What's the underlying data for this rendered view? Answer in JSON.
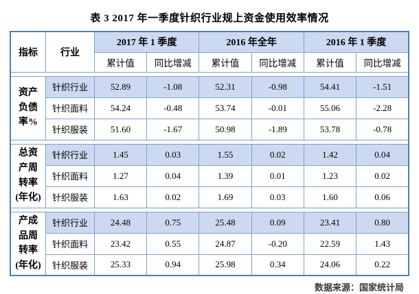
{
  "title": "表 3 2017 年一季度针织行业规上资金使用效率情况",
  "colors": {
    "header_bg": "#ccd9f0",
    "highlight_row_bg": "#ccd9f0",
    "inner_border": "#7aa1d2",
    "outer_border": "#4a7ebb"
  },
  "table": {
    "corner_headers": {
      "indicator": "指标",
      "industry": "行业"
    },
    "period_groups": [
      {
        "label": "2017 年 1 季度"
      },
      {
        "label": "2016 年全年"
      },
      {
        "label": "2016 年 1 季度"
      }
    ],
    "sub_headers": [
      "累计值",
      "同比增减"
    ],
    "groups": [
      {
        "indicator": "资产\n负债\n率%",
        "rows": [
          {
            "industry": "针织行业",
            "highlight": true,
            "values": [
              "52.89",
              "-1.08",
              "52.31",
              "-0.98",
              "54.41",
              "-1.51"
            ]
          },
          {
            "industry": "针织面料",
            "highlight": false,
            "values": [
              "54.24",
              "-0.48",
              "53.74",
              "-0.01",
              "55.06",
              "-2.28"
            ]
          },
          {
            "industry": "针织服装",
            "highlight": false,
            "values": [
              "51.60",
              "-1.67",
              "50.98",
              "-1.89",
              "53.78",
              "-0.78"
            ]
          }
        ]
      },
      {
        "indicator": "总资\n产周\n转率\n(年化)",
        "rows": [
          {
            "industry": "针织行业",
            "highlight": true,
            "values": [
              "1.45",
              "0.03",
              "1.55",
              "0.02",
              "1.42",
              "0.04"
            ]
          },
          {
            "industry": "针织面料",
            "highlight": false,
            "values": [
              "1.27",
              "0.04",
              "1.39",
              "0.01",
              "1.23",
              "0.02"
            ]
          },
          {
            "industry": "针织服装",
            "highlight": false,
            "values": [
              "1.63",
              "0.02",
              "1.69",
              "0.03",
              "1.60",
              "0.06"
            ]
          }
        ]
      },
      {
        "indicator": "产成\n品周\n转率\n(年化)",
        "rows": [
          {
            "industry": "针织行业",
            "highlight": true,
            "values": [
              "24.48",
              "0.75",
              "25.48",
              "0.09",
              "23.41",
              "0.80"
            ]
          },
          {
            "industry": "针织面料",
            "highlight": false,
            "values": [
              "23.42",
              "0.55",
              "24.87",
              "-0.20",
              "22.59",
              "1.43"
            ]
          },
          {
            "industry": "针织服装",
            "highlight": false,
            "values": [
              "25.33",
              "0.94",
              "25.98",
              "0.34",
              "24.06",
              "0.22"
            ]
          }
        ]
      }
    ]
  },
  "footer": {
    "source": "数据来源：国家统计局"
  }
}
